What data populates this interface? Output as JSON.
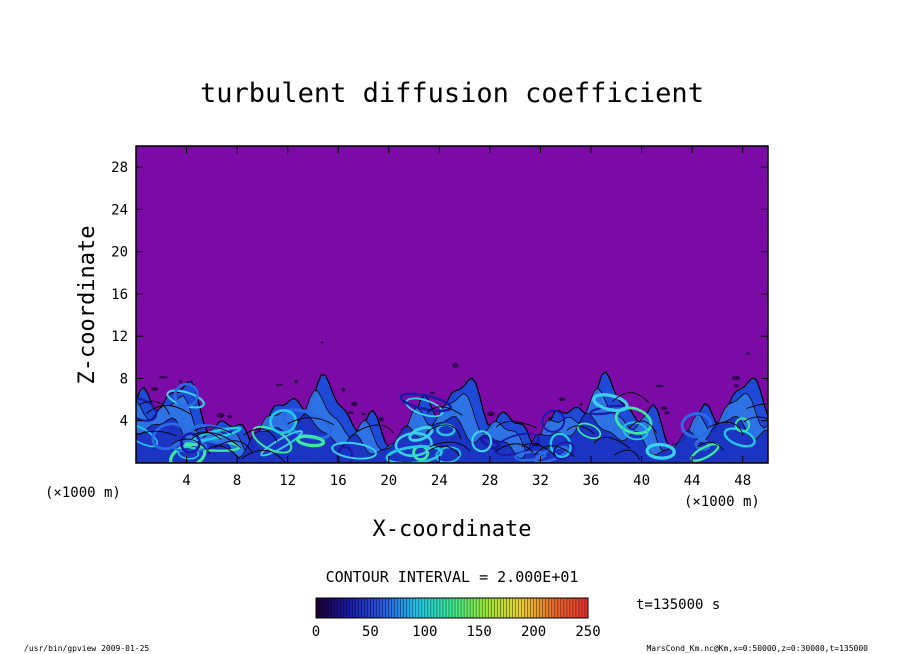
{
  "chart_data": {
    "type": "heatmap",
    "title": "turbulent diffusion coefficient",
    "xlabel": "X-coordinate",
    "ylabel": "Z-coordinate",
    "x_units": "(×1000 m)",
    "y_units": "(×1000 m)",
    "xlim": [
      0,
      50
    ],
    "ylim": [
      0,
      30
    ],
    "x_ticks": [
      4,
      8,
      12,
      16,
      20,
      24,
      28,
      32,
      36,
      40,
      44,
      48
    ],
    "y_ticks": [
      4,
      8,
      12,
      16,
      20,
      24,
      28
    ],
    "contour_interval": "CONTOUR INTERVAL = 2.000E+01",
    "time_label": "t=135000 s",
    "colorbar": {
      "ticks": [
        0,
        50,
        100,
        150,
        200,
        250
      ],
      "range": [
        0,
        250
      ],
      "colors": [
        "#1a0033",
        "#1a1aa8",
        "#2a5ae0",
        "#22c8e8",
        "#3ae890",
        "#9ae838",
        "#e8d030",
        "#e86a2a",
        "#e83030"
      ]
    },
    "background_color": "#7b0aa6",
    "turbulent_layer_top_km": 8.5
  },
  "footer": {
    "left": "/usr/bin/gpview   2009-01-25",
    "right": "MarsCond_Km.nc@Km,x=0:50000,z=0:30000,t=135000"
  }
}
